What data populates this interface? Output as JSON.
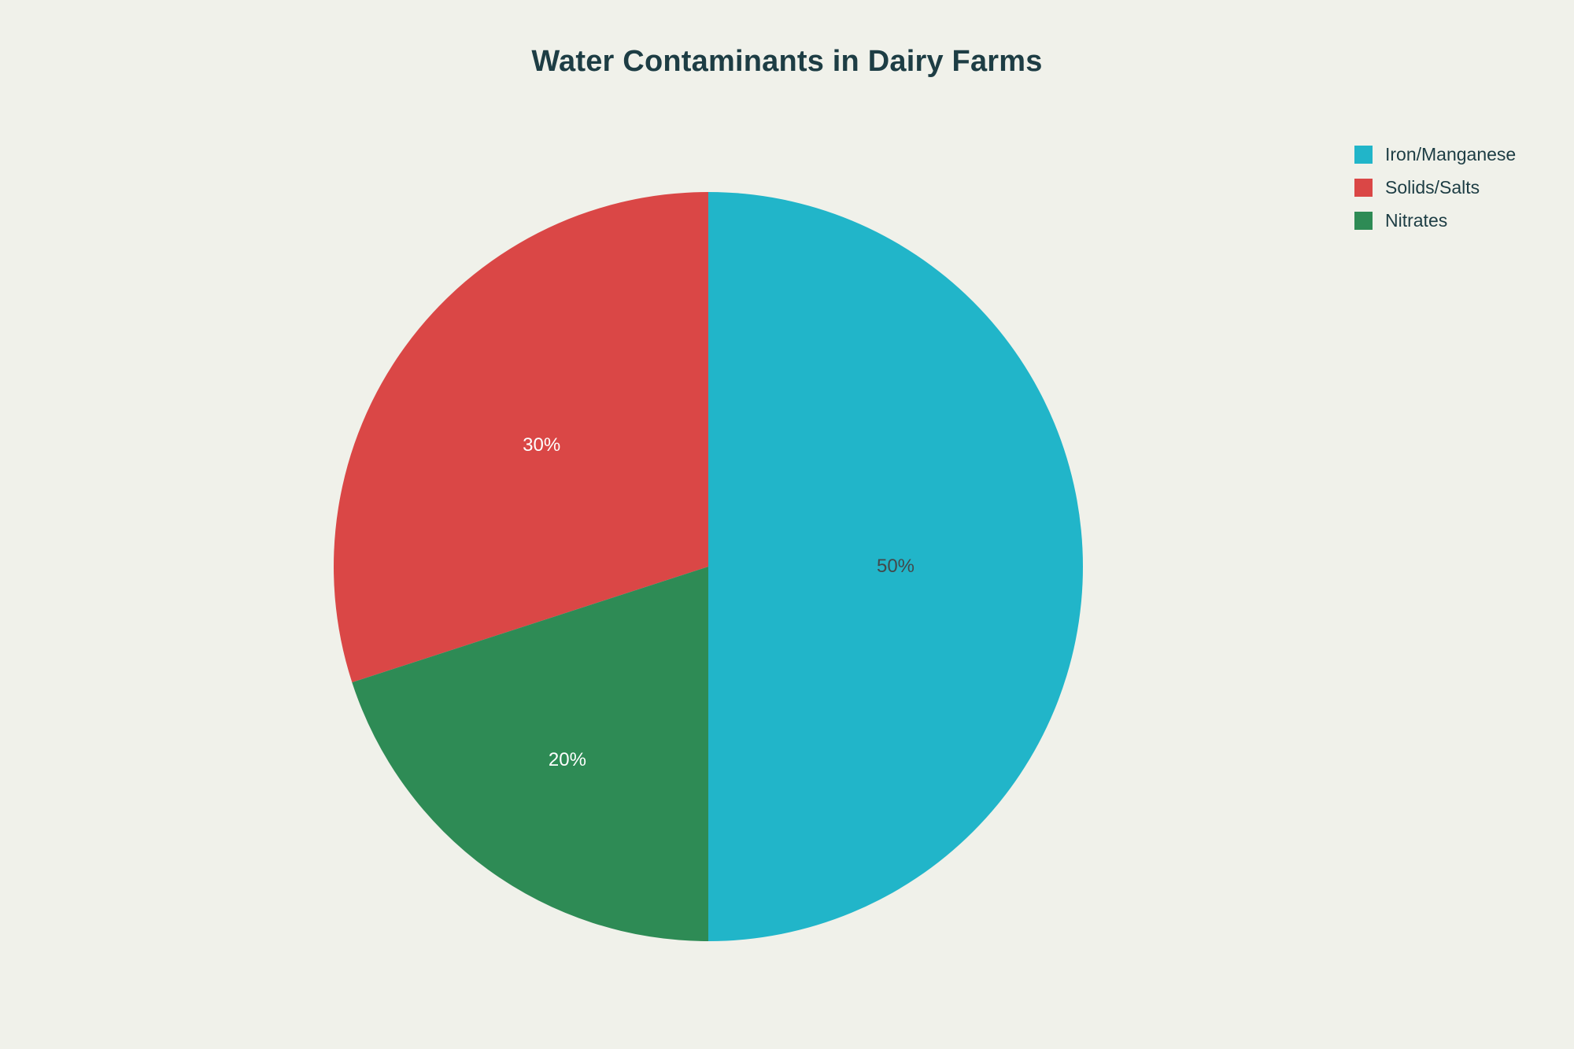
{
  "page": {
    "background_color": "#f0f1ea"
  },
  "chart_data": {
    "type": "pie",
    "title": "Water Contaminants in Dairy Farms",
    "title_color": "#1d3d44",
    "legend_position": "top-right",
    "legend_text_color": "#1d3d44",
    "categories": [
      "Iron/Manganese",
      "Solids/Salts",
      "Nitrates"
    ],
    "values": [
      50,
      30,
      20
    ],
    "slices": [
      {
        "label": "Iron/Manganese",
        "value": 50,
        "pct_label": "50%",
        "color": "#21b5c9",
        "label_color": "#42484b",
        "start_deg": 0,
        "end_deg": 180,
        "label_r": 0.5
      },
      {
        "label": "Solids/Salts",
        "value": 30,
        "pct_label": "30%",
        "color": "#da4746",
        "label_color": "#ffffff",
        "start_deg": 252,
        "end_deg": 360,
        "label_r": 0.55
      },
      {
        "label": "Nitrates",
        "value": 20,
        "pct_label": "20%",
        "color": "#2e8b55",
        "label_color": "#ffffff",
        "start_deg": 180,
        "end_deg": 252,
        "label_r": 0.64
      }
    ]
  }
}
